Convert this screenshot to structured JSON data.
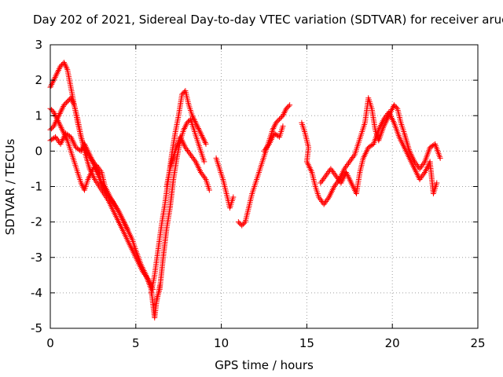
{
  "chart_data": {
    "type": "scatter",
    "title": "Day 202 of 2021, Sidereal Day-to-day VTEC variation (SDTVAR) for receiver aruc",
    "xlabel": "GPS time / hours",
    "ylabel": "SDTVAR / TECUs",
    "xlim": [
      0,
      25
    ],
    "ylim": [
      -5,
      3
    ],
    "xticks": [
      0,
      5,
      10,
      15,
      20,
      25
    ],
    "yticks": [
      -5,
      -4,
      -3,
      -2,
      -1,
      0,
      1,
      2,
      3
    ],
    "grid": true,
    "marker": "+",
    "series_color": "#ff0000",
    "series": [
      {
        "name": "SDTVAR",
        "description": "approximate traces read from the plot (multiple overlapping tracks)",
        "tracks": [
          [
            [
              0.0,
              1.8
            ],
            [
              0.2,
              2.0
            ],
            [
              0.4,
              2.2
            ],
            [
              0.6,
              2.4
            ],
            [
              0.8,
              2.5
            ],
            [
              1.0,
              2.3
            ],
            [
              1.2,
              1.8
            ],
            [
              1.4,
              1.3
            ],
            [
              1.6,
              0.8
            ],
            [
              1.8,
              0.4
            ],
            [
              2.0,
              0.1
            ],
            [
              2.2,
              -0.1
            ],
            [
              2.5,
              -0.3
            ],
            [
              2.8,
              -0.6
            ],
            [
              3.0,
              -0.9
            ],
            [
              3.3,
              -1.2
            ],
            [
              3.6,
              -1.4
            ],
            [
              4.0,
              -1.7
            ],
            [
              4.4,
              -2.1
            ],
            [
              4.8,
              -2.5
            ],
            [
              5.0,
              -2.8
            ],
            [
              5.3,
              -3.2
            ],
            [
              5.6,
              -3.5
            ],
            [
              5.9,
              -3.9
            ],
            [
              6.1,
              -4.7
            ],
            [
              6.2,
              -4.3
            ],
            [
              6.4,
              -3.8
            ]
          ],
          [
            [
              0.0,
              0.6
            ],
            [
              0.2,
              0.7
            ],
            [
              0.4,
              0.9
            ],
            [
              0.6,
              1.1
            ],
            [
              0.8,
              1.3
            ],
            [
              1.0,
              1.4
            ],
            [
              1.2,
              1.5
            ],
            [
              1.4,
              1.3
            ],
            [
              1.6,
              0.9
            ],
            [
              1.8,
              0.4
            ],
            [
              2.0,
              0.0
            ],
            [
              2.3,
              -0.5
            ],
            [
              2.6,
              -0.8
            ],
            [
              3.0,
              -1.1
            ],
            [
              3.4,
              -1.4
            ],
            [
              3.8,
              -1.8
            ],
            [
              4.2,
              -2.2
            ],
            [
              4.6,
              -2.6
            ],
            [
              5.0,
              -3.0
            ],
            [
              5.4,
              -3.4
            ],
            [
              5.7,
              -3.6
            ],
            [
              6.0,
              -3.9
            ]
          ],
          [
            [
              0.0,
              1.2
            ],
            [
              0.2,
              1.1
            ],
            [
              0.4,
              0.9
            ],
            [
              0.6,
              0.7
            ],
            [
              0.8,
              0.5
            ],
            [
              1.0,
              0.3
            ],
            [
              1.2,
              0.0
            ],
            [
              1.4,
              -0.3
            ],
            [
              1.6,
              -0.6
            ],
            [
              1.8,
              -0.9
            ],
            [
              2.0,
              -1.1
            ],
            [
              2.2,
              -0.8
            ],
            [
              2.5,
              -0.5
            ],
            [
              2.7,
              -0.4
            ],
            [
              3.0,
              -0.6
            ],
            [
              3.2,
              -1.0
            ],
            [
              3.5,
              -1.3
            ],
            [
              4.0,
              -1.7
            ],
            [
              4.5,
              -2.2
            ]
          ],
          [
            [
              0.0,
              0.3
            ],
            [
              0.3,
              0.4
            ],
            [
              0.6,
              0.2
            ],
            [
              0.9,
              0.5
            ],
            [
              1.2,
              0.4
            ],
            [
              1.5,
              0.1
            ],
            [
              1.8,
              0.0
            ],
            [
              2.0,
              0.2
            ],
            [
              2.3,
              -0.1
            ],
            [
              2.6,
              -0.4
            ],
            [
              2.9,
              -0.8
            ],
            [
              3.2,
              -1.1
            ]
          ],
          [
            [
              5.9,
              -4.0
            ],
            [
              6.1,
              -3.5
            ],
            [
              6.3,
              -2.8
            ],
            [
              6.5,
              -2.1
            ],
            [
              6.7,
              -1.5
            ],
            [
              6.9,
              -0.8
            ],
            [
              7.1,
              -0.1
            ],
            [
              7.3,
              0.5
            ],
            [
              7.5,
              1.0
            ],
            [
              7.7,
              1.6
            ],
            [
              7.9,
              1.7
            ],
            [
              8.1,
              1.3
            ],
            [
              8.3,
              1.0
            ],
            [
              8.5,
              0.8
            ],
            [
              8.7,
              0.6
            ],
            [
              8.9,
              0.4
            ],
            [
              9.1,
              0.2
            ]
          ],
          [
            [
              6.2,
              -4.2
            ],
            [
              6.4,
              -3.9
            ],
            [
              6.6,
              -3.0
            ],
            [
              6.8,
              -2.2
            ],
            [
              7.0,
              -1.6
            ],
            [
              7.2,
              -0.8
            ],
            [
              7.4,
              -0.2
            ],
            [
              7.6,
              0.3
            ],
            [
              7.8,
              0.6
            ],
            [
              8.0,
              0.8
            ],
            [
              8.2,
              0.9
            ],
            [
              8.4,
              0.6
            ],
            [
              8.6,
              0.3
            ],
            [
              8.8,
              0.0
            ],
            [
              9.0,
              -0.3
            ]
          ],
          [
            [
              6.8,
              -1.0
            ],
            [
              7.0,
              -0.5
            ],
            [
              7.3,
              0.0
            ],
            [
              7.6,
              0.4
            ],
            [
              7.9,
              0.1
            ],
            [
              8.2,
              -0.1
            ],
            [
              8.5,
              -0.3
            ],
            [
              8.8,
              -0.6
            ],
            [
              9.1,
              -0.8
            ],
            [
              9.3,
              -1.1
            ]
          ],
          [
            [
              9.7,
              -0.2
            ],
            [
              9.9,
              -0.5
            ],
            [
              10.1,
              -0.8
            ],
            [
              10.3,
              -1.2
            ],
            [
              10.5,
              -1.6
            ],
            [
              10.7,
              -1.3
            ]
          ],
          [
            [
              11.0,
              -2.0
            ],
            [
              11.2,
              -2.1
            ],
            [
              11.4,
              -2.0
            ],
            [
              11.6,
              -1.6
            ],
            [
              11.8,
              -1.2
            ],
            [
              12.0,
              -0.9
            ],
            [
              12.2,
              -0.6
            ],
            [
              12.4,
              -0.3
            ],
            [
              12.6,
              -0.0
            ],
            [
              12.8,
              0.3
            ],
            [
              13.0,
              0.6
            ],
            [
              13.2,
              0.8
            ],
            [
              13.4,
              0.9
            ],
            [
              13.6,
              1.0
            ],
            [
              13.8,
              1.2
            ],
            [
              14.0,
              1.3
            ]
          ],
          [
            [
              12.5,
              0.0
            ],
            [
              12.8,
              0.2
            ],
            [
              13.1,
              0.5
            ],
            [
              13.4,
              0.4
            ],
            [
              13.6,
              0.7
            ]
          ],
          [
            [
              14.7,
              0.8
            ],
            [
              14.9,
              0.5
            ],
            [
              15.1,
              0.1
            ],
            [
              15.0,
              -0.3
            ],
            [
              15.3,
              -0.6
            ],
            [
              15.5,
              -1.0
            ],
            [
              15.7,
              -1.3
            ],
            [
              16.0,
              -1.5
            ],
            [
              16.3,
              -1.3
            ],
            [
              16.6,
              -1.0
            ],
            [
              16.9,
              -0.8
            ],
            [
              17.2,
              -0.5
            ],
            [
              17.5,
              -0.3
            ],
            [
              17.8,
              -0.1
            ],
            [
              18.0,
              0.2
            ],
            [
              18.2,
              0.5
            ],
            [
              18.4,
              0.8
            ],
            [
              18.6,
              1.5
            ],
            [
              18.8,
              1.2
            ],
            [
              19.0,
              0.6
            ],
            [
              19.2,
              0.3
            ],
            [
              19.5,
              0.7
            ],
            [
              19.8,
              1.0
            ],
            [
              20.1,
              1.3
            ],
            [
              20.3,
              1.2
            ],
            [
              20.5,
              0.8
            ],
            [
              20.7,
              0.5
            ],
            [
              21.0,
              0.0
            ],
            [
              21.3,
              -0.3
            ],
            [
              21.6,
              -0.5
            ],
            [
              21.9,
              -0.3
            ],
            [
              22.2,
              0.1
            ],
            [
              22.5,
              0.2
            ],
            [
              22.8,
              -0.2
            ]
          ],
          [
            [
              15.8,
              -0.9
            ],
            [
              16.1,
              -0.7
            ],
            [
              16.4,
              -0.5
            ],
            [
              16.7,
              -0.7
            ],
            [
              17.0,
              -0.9
            ],
            [
              17.3,
              -0.6
            ],
            [
              17.6,
              -0.9
            ],
            [
              17.9,
              -1.2
            ],
            [
              18.1,
              -0.6
            ],
            [
              18.3,
              -0.2
            ],
            [
              18.6,
              0.1
            ],
            [
              18.9,
              0.2
            ],
            [
              19.2,
              0.6
            ],
            [
              19.5,
              0.9
            ],
            [
              19.8,
              1.1
            ],
            [
              20.1,
              0.8
            ],
            [
              20.4,
              0.4
            ],
            [
              20.7,
              0.1
            ],
            [
              21.0,
              -0.2
            ],
            [
              21.3,
              -0.5
            ],
            [
              21.6,
              -0.8
            ],
            [
              21.9,
              -0.6
            ],
            [
              22.2,
              -0.3
            ],
            [
              22.4,
              -1.2
            ],
            [
              22.6,
              -0.9
            ]
          ]
        ]
      }
    ]
  }
}
